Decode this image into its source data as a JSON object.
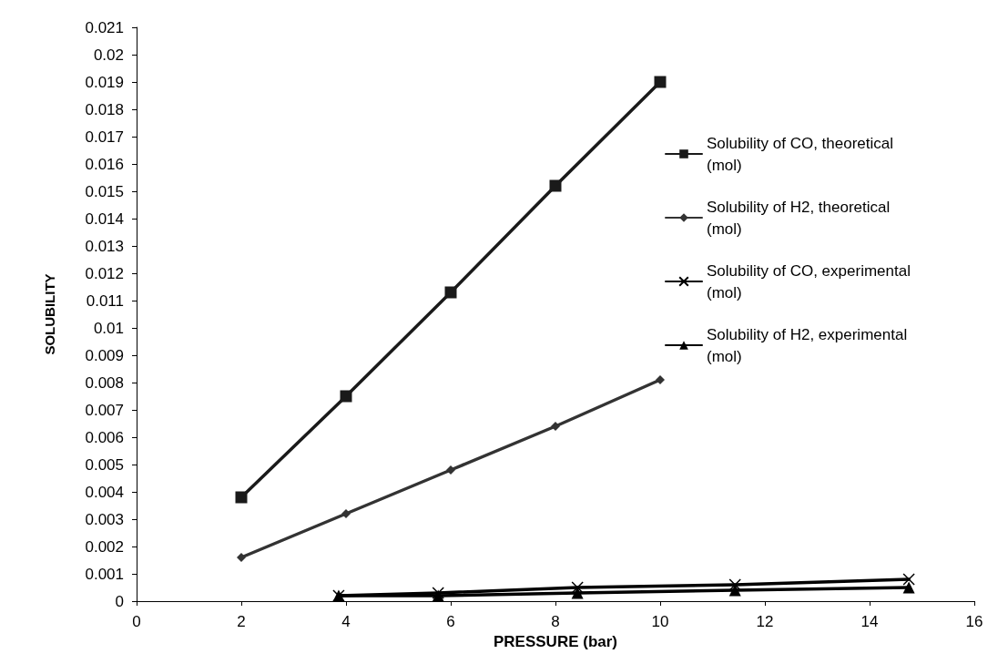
{
  "chart_data": {
    "type": "line",
    "xlabel": "PRESSURE (bar)",
    "ylabel": "SOLUBILITY",
    "xlim": [
      0,
      16
    ],
    "xticks": [
      0,
      2,
      4,
      6,
      8,
      10,
      12,
      14,
      16
    ],
    "ylim": [
      0,
      0.021
    ],
    "yticks": [
      0,
      0.001,
      0.002,
      0.003,
      0.004,
      0.005,
      0.006,
      0.007,
      0.008,
      0.009,
      0.01,
      0.011,
      0.012,
      0.013,
      0.014,
      0.015,
      0.016,
      0.017,
      0.018,
      0.019,
      0.02,
      0.021
    ],
    "grid": false,
    "legend": "right",
    "line_style": "solid",
    "series": [
      {
        "name": "Solubility of CO, theoretical (mol)",
        "color": "#1a1a1a",
        "marker": "square",
        "x": [
          2,
          4,
          6,
          8,
          10
        ],
        "values": [
          0.0038,
          0.0075,
          0.0113,
          0.0152,
          0.019
        ]
      },
      {
        "name": "Solubility of H2, theoretical (mol)",
        "color": "#333333",
        "marker": "diamond",
        "x": [
          2,
          4,
          6,
          8,
          10
        ],
        "values": [
          0.0016,
          0.0032,
          0.0048,
          0.0064,
          0.0081
        ]
      },
      {
        "name": "Solubility of CO, experimental (mol)",
        "color": "#000000",
        "marker": "cross",
        "x": [
          3.86,
          5.76,
          8.42,
          11.43,
          14.75
        ],
        "values": [
          0.0002,
          0.0003,
          0.0005,
          0.0006,
          0.0008
        ]
      },
      {
        "name": "Solubility of H2, experimental (mol)",
        "color": "#000000",
        "marker": "triangle",
        "x": [
          3.86,
          5.76,
          8.42,
          11.43,
          14.75
        ],
        "values": [
          0.0002,
          0.0002,
          0.0003,
          0.0004,
          0.0005
        ]
      }
    ]
  }
}
